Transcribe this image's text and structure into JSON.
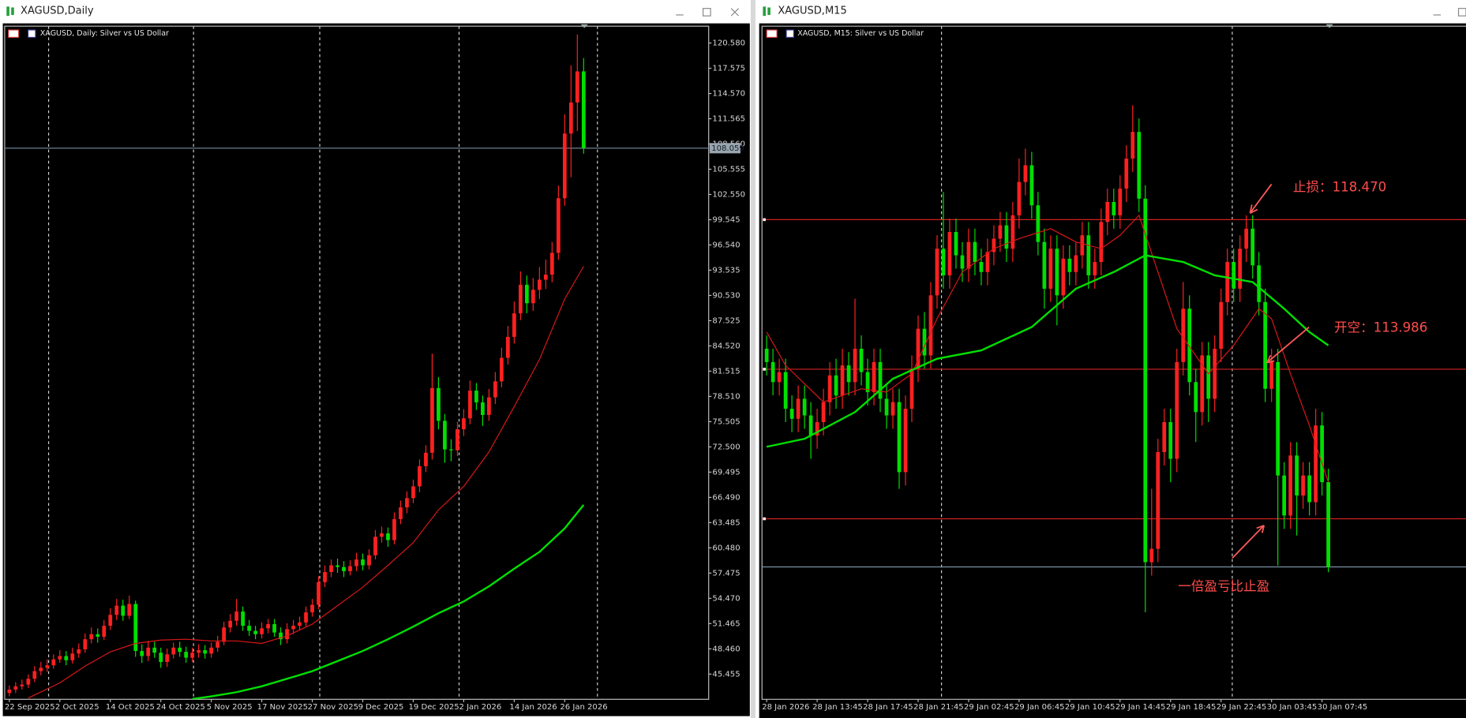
{
  "windows": [
    {
      "title": "XAGUSD,Daily"
    },
    {
      "title": "XAGUSD,M15"
    }
  ],
  "chart_data": [
    {
      "type": "candlestick",
      "title": "XAGUSD, Daily:  Silver vs US Dollar",
      "categories": [
        "22 Sep 2025",
        null,
        null,
        null,
        null,
        null,
        null,
        null,
        "2 Oct 2025",
        null,
        null,
        null,
        null,
        null,
        null,
        null,
        "14 Oct 2025",
        null,
        null,
        null,
        null,
        null,
        null,
        null,
        "24 Oct 2025",
        null,
        null,
        null,
        null,
        null,
        null,
        null,
        "5 Nov 2025",
        null,
        null,
        null,
        null,
        null,
        null,
        null,
        "17 Nov 2025",
        null,
        null,
        null,
        null,
        null,
        null,
        null,
        "27 Nov 2025",
        null,
        null,
        null,
        null,
        null,
        null,
        null,
        "9 Dec 2025",
        null,
        null,
        null,
        null,
        null,
        null,
        null,
        "19 Dec 2025",
        null,
        null,
        null,
        null,
        null,
        null,
        null,
        "2 Jan 2026",
        null,
        null,
        null,
        null,
        null,
        null,
        null,
        "14 Jan 2026",
        null,
        null,
        null,
        null,
        null,
        null,
        null,
        "26 Jan 2026",
        null,
        null,
        null
      ],
      "open": [
        43.2,
        43.6,
        44.0,
        44.2,
        44.9,
        45.8,
        46.2,
        46.5,
        47.2,
        47.6,
        47.1,
        47.9,
        48.4,
        49.6,
        50.2,
        49.9,
        51.2,
        52.5,
        53.6,
        52.4,
        53.8,
        48.2,
        47.6,
        48.6,
        48.0,
        46.9,
        47.8,
        48.6,
        48.1,
        47.4,
        48.0,
        48.3,
        47.9,
        48.6,
        49.3,
        51.0,
        51.8,
        52.9,
        51.2,
        50.6,
        50.2,
        50.9,
        51.4,
        50.4,
        49.6,
        50.8,
        51.2,
        51.6,
        52.8,
        53.7,
        56.4,
        57.6,
        58.4,
        58.2,
        57.7,
        58.3,
        59.1,
        58.4,
        59.6,
        61.8,
        62.2,
        61.4,
        63.9,
        65.3,
        66.4,
        67.8,
        70.2,
        71.8,
        79.5,
        75.6,
        72.2,
        72.1,
        74.6,
        75.9,
        79.2,
        77.8,
        76.3,
        78.4,
        80.3,
        83.1,
        85.6,
        88.4,
        91.8,
        89.6,
        91.2,
        92.4,
        93.0,
        95.6,
        102.1,
        109.8,
        113.5,
        117.2
      ],
      "high": [
        44.1,
        44.5,
        44.8,
        45.4,
        46.4,
        46.9,
        47.2,
        47.8,
        48.3,
        48.2,
        48.6,
        49.1,
        50.3,
        51.0,
        50.9,
        51.9,
        53.3,
        54.4,
        54.3,
        54.8,
        54.2,
        49.0,
        49.4,
        49.3,
        48.6,
        48.5,
        49.2,
        49.3,
        48.7,
        48.6,
        49.0,
        48.9,
        49.2,
        50.0,
        51.7,
        52.6,
        54.4,
        53.5,
        51.9,
        51.2,
        51.6,
        52.0,
        52.0,
        51.0,
        51.5,
        51.9,
        52.3,
        53.5,
        54.4,
        57.1,
        58.4,
        59.1,
        59.2,
        58.9,
        59.0,
        59.9,
        59.8,
        60.3,
        62.6,
        63.0,
        62.9,
        64.7,
        66.1,
        67.2,
        68.6,
        71.0,
        72.7,
        83.6,
        80.8,
        76.4,
        73.4,
        75.5,
        77.0,
        80.4,
        80.1,
        78.6,
        79.4,
        81.4,
        84.3,
        86.9,
        89.8,
        93.4,
        92.9,
        92.6,
        93.9,
        94.8,
        96.9,
        103.6,
        112.1,
        117.9,
        121.6,
        118.8
      ],
      "low": [
        42.8,
        43.2,
        43.6,
        43.8,
        44.5,
        45.3,
        45.7,
        46.1,
        46.8,
        46.5,
        46.7,
        47.4,
        48.0,
        49.1,
        49.2,
        49.5,
        50.7,
        51.9,
        51.8,
        52.0,
        47.5,
        46.8,
        47.0,
        47.4,
        46.2,
        46.3,
        47.3,
        47.5,
        46.8,
        46.9,
        47.4,
        47.3,
        47.4,
        48.1,
        48.9,
        50.4,
        51.2,
        50.6,
        50.0,
        49.6,
        49.7,
        50.3,
        49.9,
        48.9,
        49.1,
        50.2,
        50.7,
        51.1,
        52.3,
        53.2,
        55.8,
        57.0,
        57.5,
        57.0,
        57.2,
        57.7,
        57.8,
        57.9,
        59.1,
        61.1,
        60.6,
        60.9,
        63.3,
        64.6,
        65.8,
        67.1,
        69.5,
        71.0,
        74.6,
        70.6,
        70.8,
        71.4,
        73.8,
        75.2,
        76.9,
        75.0,
        75.6,
        77.6,
        79.6,
        82.3,
        84.8,
        87.6,
        88.4,
        88.7,
        90.1,
        91.3,
        92.1,
        94.8,
        101.2,
        104.6,
        110.1,
        107.4
      ],
      "close": [
        43.6,
        44.0,
        44.2,
        44.9,
        45.8,
        46.2,
        46.5,
        47.2,
        47.6,
        47.1,
        47.9,
        48.4,
        49.6,
        50.2,
        49.9,
        51.2,
        52.5,
        53.6,
        52.4,
        53.8,
        48.2,
        47.6,
        48.6,
        48.0,
        46.9,
        47.8,
        48.6,
        48.1,
        47.4,
        48.0,
        48.3,
        47.9,
        48.6,
        49.3,
        51.0,
        51.8,
        52.9,
        51.2,
        50.6,
        50.2,
        50.9,
        51.4,
        50.4,
        49.6,
        50.8,
        51.2,
        51.6,
        52.8,
        53.7,
        56.4,
        57.6,
        58.4,
        58.2,
        57.7,
        58.3,
        59.1,
        58.4,
        59.6,
        61.8,
        62.2,
        61.4,
        63.9,
        65.3,
        66.4,
        67.8,
        70.2,
        71.8,
        79.5,
        75.6,
        72.2,
        72.1,
        74.6,
        75.9,
        79.2,
        77.8,
        76.3,
        78.4,
        80.3,
        83.1,
        85.6,
        88.4,
        91.8,
        89.6,
        91.2,
        92.4,
        93.0,
        95.6,
        102.1,
        109.8,
        113.5,
        117.2,
        108.06
      ],
      "up_color": "#ff2020",
      "down_color": "#00e000",
      "lines": [
        {
          "color": "#d81818",
          "x": [
            3,
            8,
            12,
            16,
            20,
            24,
            28,
            32,
            36,
            40,
            44,
            48,
            52,
            56,
            60,
            64,
            68,
            72,
            76,
            80,
            84,
            88,
            91
          ],
          "values": [
            42.6,
            44.4,
            46.4,
            48.1,
            49.1,
            49.5,
            49.6,
            49.4,
            49.4,
            49.1,
            50.0,
            51.4,
            53.6,
            55.8,
            58.4,
            61.1,
            65.0,
            67.8,
            71.9,
            77.3,
            82.9,
            90.1,
            94.0
          ]
        },
        {
          "color": "#00e000",
          "x": [
            29,
            32,
            36,
            40,
            44,
            48,
            52,
            56,
            60,
            64,
            68,
            72,
            76,
            80,
            84,
            88,
            91
          ],
          "values": [
            42.5,
            42.8,
            43.3,
            44.0,
            44.9,
            45.8,
            47.0,
            48.2,
            49.6,
            51.1,
            52.7,
            54.1,
            55.9,
            58.0,
            60.0,
            62.8,
            65.6
          ]
        }
      ],
      "current_price": 108.059,
      "ylim": [
        42.45,
        122.585
      ],
      "yticks": [
        45.455,
        {
          "value": 48.46,
          "label": "48.460"
        },
        51.465,
        {
          "value": 54.47,
          "label": "54.470"
        },
        57.475,
        {
          "value": 60.48,
          "label": "60.480"
        },
        63.485,
        {
          "value": 66.49,
          "label": "66.490"
        },
        69.495,
        {
          "value": 72.5,
          "label": "72.500"
        },
        75.505,
        {
          "value": 78.51,
          "label": "78.510"
        },
        81.515,
        {
          "value": 84.52,
          "label": "84.520"
        },
        87.525,
        {
          "value": 90.53,
          "label": "90.530"
        },
        93.535,
        {
          "value": 96.54,
          "label": "96.540"
        },
        99.545,
        {
          "value": 102.55,
          "label": "102.550"
        },
        105.555,
        {
          "value": 108.56,
          "label": "108.560"
        },
        111.565,
        {
          "value": 114.57,
          "label": "114.570"
        },
        117.575,
        {
          "value": 120.58,
          "label": "120.580"
        }
      ]
    },
    {
      "type": "candlestick",
      "title": "XAGUSD, M15:  Silver vs US Dollar",
      "categories": [
        "28 Jan 2026",
        null,
        null,
        null,
        null,
        null,
        null,
        null,
        "28 Jan 13:45",
        null,
        null,
        null,
        null,
        null,
        null,
        null,
        "28 Jan 17:45",
        null,
        null,
        null,
        null,
        null,
        null,
        null,
        "28 Jan 21:45",
        null,
        null,
        null,
        null,
        null,
        null,
        null,
        "29 Jan 02:45",
        null,
        null,
        null,
        null,
        null,
        null,
        null,
        "29 Jan 06:45",
        null,
        null,
        null,
        null,
        null,
        null,
        null,
        "29 Jan 10:45",
        null,
        null,
        null,
        null,
        null,
        null,
        null,
        "29 Jan 14:45",
        null,
        null,
        null,
        null,
        null,
        null,
        null,
        "29 Jan 18:45",
        null,
        null,
        null,
        null,
        null,
        null,
        null,
        "29 Jan 22:45",
        null,
        null,
        null,
        null,
        null,
        null,
        null,
        "30 Jan 03:45",
        null,
        null,
        null,
        null,
        null,
        null,
        null,
        "30 Jan 07:45",
        null
      ],
      "open": [
        114.6,
        114.2,
        113.6,
        113.9,
        112.8,
        112.5,
        113.1,
        112.6,
        112.0,
        112.4,
        113.0,
        113.8,
        113.2,
        114.1,
        113.6,
        114.6,
        113.9,
        113.3,
        114.2,
        113.1,
        112.6,
        113.0,
        110.9,
        112.8,
        114.0,
        115.2,
        114.4,
        116.2,
        117.6,
        116.8,
        118.1,
        117.4,
        117.0,
        117.8,
        117.2,
        116.9,
        117.5,
        117.9,
        118.3,
        117.6,
        118.6,
        119.6,
        120.1,
        118.9,
        117.8,
        116.4,
        117.6,
        116.2,
        117.3,
        116.9,
        117.4,
        118.0,
        116.8,
        117.2,
        118.4,
        119.0,
        118.6,
        119.4,
        120.3,
        121.1,
        119.1,
        108.2,
        108.6,
        111.5,
        112.4,
        111.3,
        114.2,
        115.8,
        113.6,
        112.7,
        114.4,
        113.1,
        114.6,
        116.0,
        117.2,
        116.4,
        117.6,
        118.2,
        117.1,
        116.0,
        113.4,
        114.2,
        110.8,
        109.6,
        111.4,
        110.2,
        110.8,
        110.0,
        112.3,
        110.6
      ],
      "high": [
        115.0,
        114.6,
        114.3,
        114.3,
        113.2,
        113.5,
        113.5,
        113.0,
        112.8,
        113.4,
        114.2,
        114.3,
        114.6,
        114.5,
        116.1,
        115.0,
        114.3,
        114.6,
        114.6,
        113.5,
        113.4,
        113.4,
        113.2,
        114.4,
        115.6,
        115.7,
        116.6,
        118.0,
        119.3,
        118.5,
        118.5,
        117.8,
        118.2,
        118.2,
        117.6,
        117.9,
        118.3,
        118.7,
        118.7,
        119.0,
        120.3,
        120.6,
        120.5,
        119.3,
        118.2,
        118.0,
        118.0,
        117.7,
        117.7,
        117.8,
        118.4,
        118.4,
        117.6,
        118.8,
        119.4,
        119.4,
        119.8,
        120.7,
        121.9,
        121.5,
        119.5,
        110.4,
        111.9,
        112.8,
        112.8,
        114.6,
        116.6,
        116.2,
        114.0,
        114.8,
        114.8,
        115.0,
        116.4,
        117.6,
        117.6,
        118.0,
        118.6,
        118.6,
        117.5,
        116.4,
        114.6,
        114.6,
        111.2,
        111.8,
        111.8,
        111.2,
        111.2,
        112.8,
        112.7,
        111.0
      ],
      "low": [
        113.8,
        113.2,
        113.2,
        112.4,
        112.1,
        112.1,
        112.2,
        111.3,
        111.6,
        112.0,
        112.6,
        112.8,
        112.8,
        113.2,
        113.2,
        113.5,
        112.9,
        112.9,
        112.7,
        112.2,
        112.2,
        110.4,
        110.5,
        112.4,
        113.6,
        114.0,
        114.0,
        115.8,
        116.4,
        116.4,
        117.0,
        116.6,
        116.6,
        116.8,
        116.5,
        116.5,
        117.1,
        117.5,
        117.2,
        117.2,
        118.2,
        119.2,
        118.5,
        117.4,
        115.8,
        116.0,
        115.3,
        115.8,
        116.5,
        116.5,
        117.0,
        116.4,
        116.4,
        116.8,
        118.0,
        118.2,
        118.2,
        119.0,
        119.9,
        118.7,
        106.7,
        107.8,
        108.2,
        111.1,
        110.6,
        110.9,
        113.8,
        113.2,
        111.8,
        112.3,
        112.4,
        112.7,
        114.2,
        115.6,
        116.0,
        116.0,
        117.2,
        116.7,
        115.6,
        113.0,
        113.0,
        108.1,
        109.2,
        109.2,
        109.0,
        109.8,
        109.6,
        109.6,
        110.2,
        107.9
      ],
      "close": [
        114.2,
        113.6,
        113.9,
        112.8,
        112.5,
        113.1,
        112.6,
        112.0,
        112.4,
        113.0,
        113.8,
        113.2,
        114.1,
        113.6,
        114.6,
        113.9,
        113.3,
        114.2,
        113.1,
        112.6,
        113.0,
        110.9,
        112.8,
        114.0,
        115.2,
        114.4,
        116.2,
        117.6,
        116.8,
        118.1,
        117.4,
        117.0,
        117.8,
        117.2,
        116.9,
        117.5,
        117.9,
        118.3,
        117.6,
        118.6,
        119.6,
        120.1,
        118.9,
        117.8,
        116.4,
        117.6,
        116.2,
        117.3,
        116.9,
        117.4,
        118.0,
        116.8,
        117.2,
        118.4,
        119.0,
        118.6,
        119.4,
        120.3,
        121.1,
        119.1,
        108.2,
        108.6,
        111.5,
        112.4,
        111.3,
        114.2,
        115.8,
        113.6,
        112.7,
        114.4,
        113.1,
        114.6,
        116.0,
        117.2,
        116.4,
        117.6,
        118.2,
        117.1,
        116.0,
        113.4,
        114.2,
        110.8,
        109.6,
        111.4,
        110.2,
        110.8,
        110.0,
        112.3,
        110.6,
        108.06
      ],
      "up_color": "#ff2020",
      "down_color": "#00e000",
      "lines": [
        {
          "color": "#d81818",
          "x": [
            0,
            3,
            9,
            15,
            19,
            23,
            27,
            31,
            36,
            40,
            45,
            49,
            53,
            56,
            59,
            62,
            65,
            70,
            74,
            78,
            80,
            83,
            86,
            89
          ],
          "values": [
            115.1,
            114.1,
            113.0,
            113.4,
            113.3,
            113.85,
            115.5,
            116.9,
            117.6,
            117.9,
            118.2,
            117.8,
            117.6,
            118.0,
            118.6,
            116.9,
            115.2,
            113.85,
            114.7,
            115.8,
            115.5,
            113.85,
            112.3,
            110.6
          ]
        },
        {
          "color": "#00e000",
          "x": [
            0,
            6,
            14,
            20,
            27,
            34,
            42,
            49,
            55,
            60,
            66,
            71,
            77,
            82,
            86,
            89
          ],
          "values": [
            111.66,
            111.9,
            112.7,
            113.7,
            114.3,
            114.55,
            115.25,
            116.4,
            116.9,
            117.4,
            117.2,
            116.8,
            116.6,
            115.8,
            115.1,
            114.7
          ]
        }
      ],
      "levels": [
        {
          "value": 118.47,
          "label": "止损：118.470",
          "color": "#d02020"
        },
        {
          "value": 113.986,
          "label": "开空：113.986",
          "color": "#d02020"
        },
        {
          "value": 109.502,
          "label": "一倍盈亏比止盈",
          "color": "#d02020"
        }
      ],
      "current_price": 108.059,
      "ylim": [
        104.09,
        124.27
      ]
    }
  ]
}
